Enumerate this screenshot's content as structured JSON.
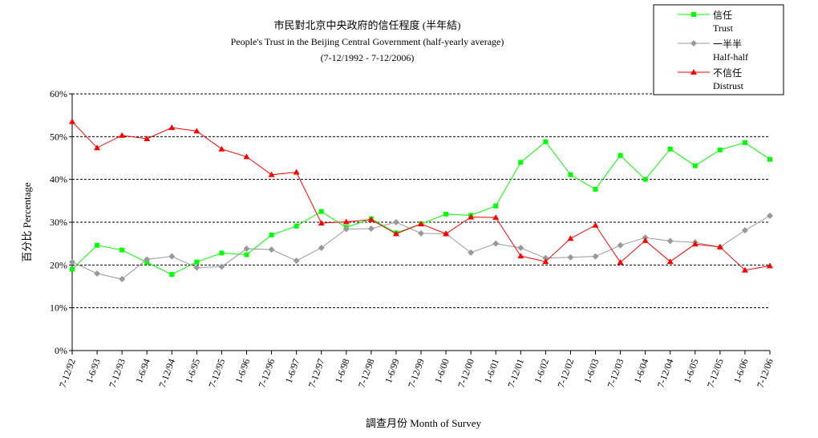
{
  "chart_data": {
    "type": "line",
    "title": "市民對北京中央政府的信任程度 (半年結)",
    "subtitle": "People's Trust in the Beijing Central Government (half-yearly average)",
    "period": "(7-12/1992 - 7-12/2006)",
    "xlabel": "調查月份 Month of Survey",
    "ylabel": "百分比 Percentage",
    "ylim": [
      0,
      60
    ],
    "yticks": [
      "0%",
      "10%",
      "20%",
      "30%",
      "40%",
      "50%",
      "60%"
    ],
    "grid": true,
    "legend_position": "top-right",
    "categories": [
      "7-12/92",
      "1-6/93",
      "7-12/93",
      "1-6/94",
      "7-12/94",
      "1-6/95",
      "7-12/95",
      "1-6/96",
      "7-12/96",
      "1-6/97",
      "7-12/97",
      "1-6/98",
      "7-12/98",
      "1-6/99",
      "7-12/99",
      "1-6/00",
      "7-12/00",
      "1-6/01",
      "7-12/01",
      "1-6/02",
      "7-12/02",
      "1-6/03",
      "7-12/03",
      "1-6/04",
      "7-12/04",
      "1-6/05",
      "7-12/05",
      "1-6/06",
      "7-12/06"
    ],
    "series": [
      {
        "name": "信任",
        "name_en": "Trust",
        "color": "#00ff00",
        "marker": "square",
        "values": [
          19.0,
          24.6,
          23.5,
          20.6,
          17.8,
          20.7,
          22.8,
          22.4,
          27.0,
          29.1,
          32.5,
          28.8,
          30.8,
          27.5,
          29.6,
          31.9,
          31.6,
          33.8,
          44.0,
          48.8,
          41.1,
          37.7,
          45.6,
          40.0,
          47.1,
          43.2,
          46.9,
          48.6,
          44.7
        ]
      },
      {
        "name": "一半半",
        "name_en": "Half-half",
        "color": "#999999",
        "marker": "diamond",
        "values": [
          20.7,
          18.0,
          16.7,
          21.3,
          22.0,
          19.4,
          19.6,
          23.8,
          23.6,
          21.0,
          24.0,
          28.4,
          28.5,
          30.0,
          27.4,
          27.3,
          22.9,
          25.0,
          24.0,
          21.6,
          21.8,
          22.0,
          24.6,
          26.4,
          25.6,
          25.3,
          24.2,
          28.1,
          31.5
        ]
      },
      {
        "name": "不信任",
        "name_en": "Distrust",
        "color": "#ff0000",
        "marker": "triangle",
        "values": [
          53.5,
          47.4,
          50.3,
          49.5,
          52.1,
          51.3,
          47.1,
          45.3,
          41.1,
          41.7,
          29.8,
          30.1,
          30.6,
          27.3,
          29.6,
          27.3,
          31.2,
          31.1,
          22.1,
          20.8,
          26.2,
          29.3,
          20.6,
          25.7,
          20.8,
          24.9,
          24.2,
          18.8,
          19.8
        ]
      }
    ]
  }
}
